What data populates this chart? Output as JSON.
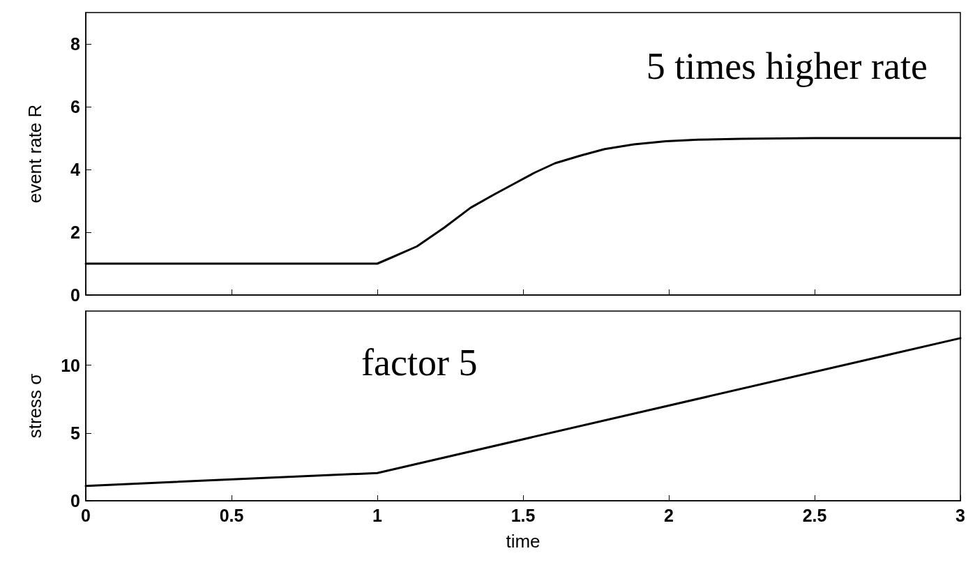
{
  "chart_data": [
    {
      "type": "line",
      "ylabel": "event rate R",
      "annotations": [
        "5 times higher rate"
      ],
      "x": [
        0,
        1,
        1.05,
        1.136,
        1.23,
        1.32,
        1.4,
        1.47,
        1.54,
        1.61,
        1.7,
        1.78,
        1.88,
        1.99,
        2.1,
        2.25,
        2.5,
        2.75,
        3
      ],
      "values": [
        1,
        1,
        1.2,
        1.55,
        2.15,
        2.78,
        3.2,
        3.55,
        3.9,
        4.2,
        4.45,
        4.65,
        4.8,
        4.9,
        4.95,
        4.98,
        5,
        5,
        5
      ],
      "color": "#000000",
      "xlim": [
        0,
        3
      ],
      "xticks": [
        0,
        0.5,
        1,
        1.5,
        2,
        2.5,
        3
      ],
      "ylim": [
        0,
        9
      ],
      "yticks": [
        0,
        2,
        4,
        6,
        8
      ],
      "tick_labels": "y",
      "grid": false,
      "marker": "none",
      "line_style": "solid"
    },
    {
      "type": "line",
      "ylabel": "stress σ",
      "xlabel": "time",
      "annotations": [
        "factor 5"
      ],
      "x": [
        0,
        1,
        3
      ],
      "values": [
        1.1,
        2.05,
        12
      ],
      "color": "#000000",
      "xlim": [
        0,
        3
      ],
      "xticks": [
        0,
        0.5,
        1,
        1.5,
        2,
        2.5,
        3
      ],
      "ylim": [
        0,
        14
      ],
      "yticks": [
        0,
        5,
        10
      ],
      "grid": false,
      "marker": "none",
      "line_style": "solid"
    }
  ]
}
